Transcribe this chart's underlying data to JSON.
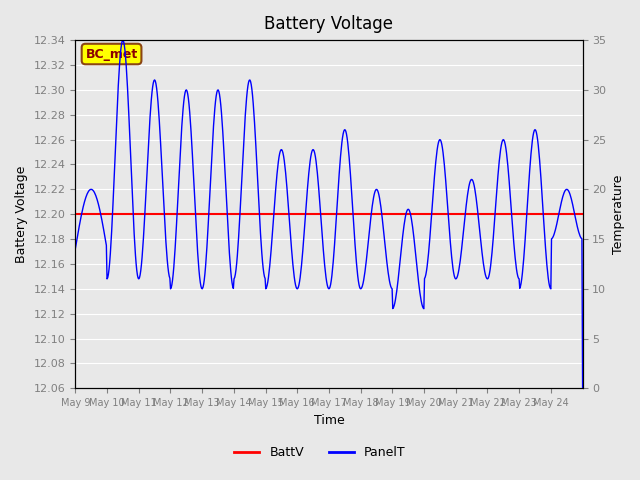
{
  "title": "Battery Voltage",
  "xlabel": "Time",
  "ylabel_left": "Battery Voltage",
  "ylabel_right": "Temperature",
  "bg_color": "#e8e8e8",
  "plot_bg_color": "#e8e8e8",
  "ylim_left": [
    12.06,
    12.34
  ],
  "ylim_right": [
    0,
    35
  ],
  "yticks_left": [
    12.06,
    12.08,
    12.1,
    12.12,
    12.14,
    12.16,
    12.18,
    12.2,
    12.22,
    12.24,
    12.26,
    12.28,
    12.3,
    12.32,
    12.34
  ],
  "yticks_right": [
    0,
    5,
    10,
    15,
    20,
    25,
    30,
    35
  ],
  "xtick_labels": [
    "May 9",
    "May 10",
    "May 11",
    "May 12",
    "May 13",
    "May 14",
    "May 15",
    "May 16",
    "May 17",
    "May 18",
    "May 19",
    "May 20",
    "May 21",
    "May 22",
    "May 23",
    "May 24"
  ],
  "battv_value": 12.2,
  "battv_color": "#ff0000",
  "panelt_color": "#0000ff",
  "legend_label_box": "BC_met",
  "legend_box_color": "#ffff00",
  "legend_box_edge": "#8b4513",
  "legend_text_color": "#8b0000",
  "grid_color": "#ffffff",
  "tick_color": "#808080"
}
